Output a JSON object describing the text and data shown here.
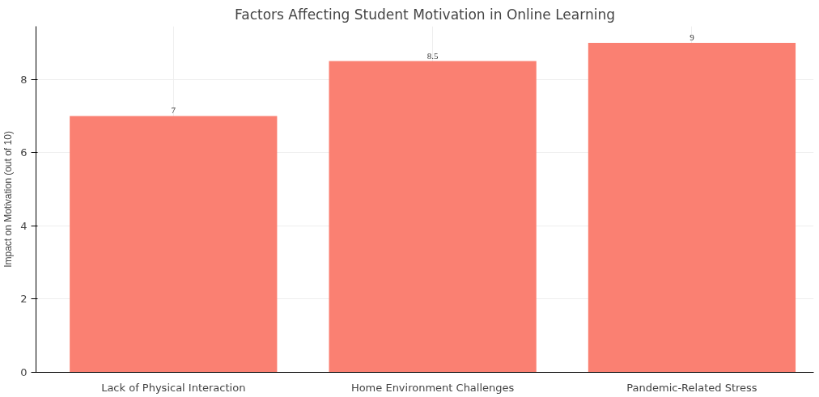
{
  "chart_data": {
    "type": "bar",
    "title": "Factors Affecting Student Motivation in Online Learning",
    "ylabel": "Impact on Motivation (out of 10)",
    "categories": [
      "Lack of Physical Interaction",
      "Home Environment Challenges",
      "Pandemic-Related Stress"
    ],
    "values": [
      7,
      8.5,
      9
    ],
    "color": "#fa8072",
    "ylim": [
      0,
      9.45
    ],
    "yticks": [
      0,
      2,
      4,
      6,
      8
    ],
    "grid": true,
    "data_labels": true
  }
}
